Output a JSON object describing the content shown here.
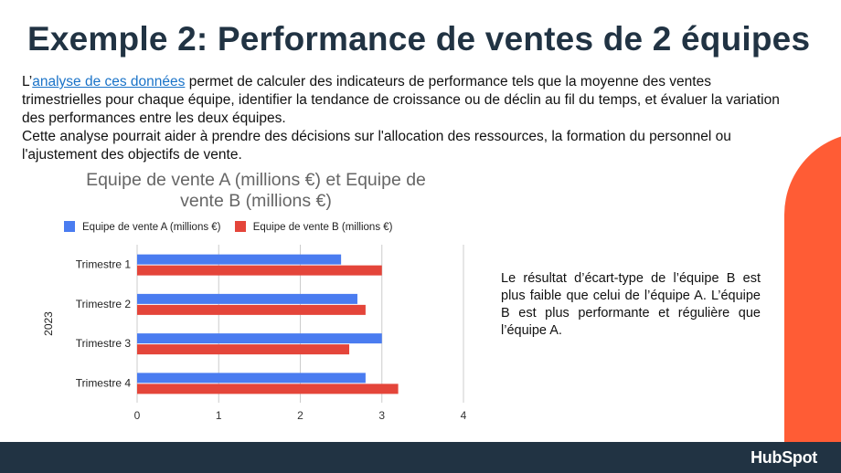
{
  "slide": {
    "title": "Exemple 2: Performance de ventes de 2 équipes",
    "intro_prefix": "L’",
    "intro_link": "analyse de ces données",
    "intro_rest": " permet de calculer des indicateurs de performance tels que la moyenne des ventes trimestrielles pour chaque équipe, identifier la tendance de croissance ou de déclin au fil du temps, et évaluer la variation des performances entre les deux équipes.",
    "intro_line2": "Cette analyse pourrait aider à prendre des décisions sur l'allocation des ressources, la formation du personnel ou l'ajustement des objectifs de vente.",
    "note": "Le résultat d’écart-type de l’équipe B est plus faible que celui de l’équipe A. L’équipe B est plus performante et régulière que l’équipe A.",
    "logo": "HubSpot"
  },
  "colors": {
    "navy": "#213343",
    "orange": "#ff5c35",
    "series_a": "#4a7cf0",
    "series_b": "#e4453a",
    "link": "#1a73c8"
  },
  "chart_data": {
    "type": "bar",
    "orientation": "horizontal",
    "title": "Equipe de vente A (millions  €) et Equipe de vente B (millions  €)",
    "title_lines": [
      "Equipe de vente A (millions  €) et Equipe de",
      "vente B (millions  €)"
    ],
    "categories": [
      "Trimestre 1",
      "Trimestre 2",
      "Trimestre 3",
      "Trimestre 4"
    ],
    "series": [
      {
        "name": "Equipe de vente A (millions  €)",
        "values": [
          2.5,
          2.7,
          3.0,
          2.8
        ]
      },
      {
        "name": "Equipe de vente B (millions  €)",
        "values": [
          3.0,
          2.8,
          2.6,
          3.2
        ]
      }
    ],
    "xlim": [
      0,
      4
    ],
    "xticks": [
      "0",
      "1",
      "2",
      "3",
      "4"
    ],
    "xlabel": "",
    "ylabel": "2023",
    "legend_position": "top",
    "grid": true
  }
}
